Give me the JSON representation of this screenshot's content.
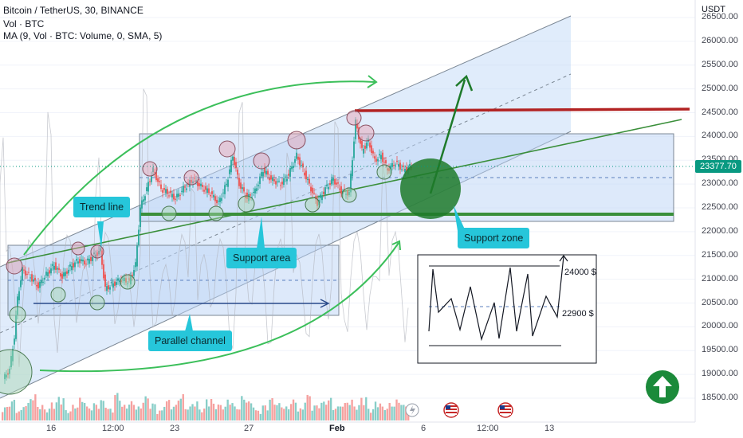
{
  "header": {
    "symbol_line": "Bitcoin / TetherUS, 30, BINANCE",
    "vol_line": "Vol · BTC",
    "ma_line": "MA (9, Vol · BTC: Volume, 0, SMA, 5)"
  },
  "currency": "USDT",
  "current_price": "23377.70",
  "callouts": {
    "trend_line": "Trend line",
    "support_area": "Support area",
    "support_zone": "Support zone",
    "parallel_channel": "Parallel channel"
  },
  "inset": {
    "top_label": "24000 $",
    "mid_label": "22900 $"
  },
  "colors": {
    "up_candle": "#26a69a",
    "down_candle": "#ef5350",
    "channel_fill": "#bbd4f6",
    "support_line": "#3a8f3a",
    "resistance_line": "#b22222",
    "arrow_green": "#2e8b3a",
    "callout_bg": "#26c6da"
  },
  "icons": [
    "up-arrow-circle-icon",
    "flag-usa-icon",
    "lightning-icon"
  ],
  "chart_data": {
    "type": "candlestick",
    "title": "Bitcoin / TetherUS, 30, BINANCE",
    "ylim": [
      18000,
      26700
    ],
    "y_ticks": [
      "26500.00",
      "26000.00",
      "25500.00",
      "25000.00",
      "24500.00",
      "24000.00",
      "23500.00",
      "23000.00",
      "22500.00",
      "22000.00",
      "21500.00",
      "21000.00",
      "20500.00",
      "20000.00",
      "19500.00",
      "19000.00",
      "18500.00"
    ],
    "x_ticks": [
      "16",
      "12:00",
      "23",
      "27",
      "Feb",
      "6",
      "12:00",
      "13"
    ],
    "x_ticks_bold": [
      "Feb"
    ],
    "price_path": [
      {
        "x": 0,
        "y": 18900
      },
      {
        "x": 8,
        "y": 19100
      },
      {
        "x": 14,
        "y": 19800
      },
      {
        "x": 18,
        "y": 20600
      },
      {
        "x": 24,
        "y": 21200
      },
      {
        "x": 34,
        "y": 21050
      },
      {
        "x": 44,
        "y": 20850
      },
      {
        "x": 54,
        "y": 21100
      },
      {
        "x": 64,
        "y": 21300
      },
      {
        "x": 74,
        "y": 21050
      },
      {
        "x": 84,
        "y": 21250
      },
      {
        "x": 94,
        "y": 21400
      },
      {
        "x": 104,
        "y": 21350
      },
      {
        "x": 114,
        "y": 21500
      },
      {
        "x": 122,
        "y": 21600
      },
      {
        "x": 128,
        "y": 20800
      },
      {
        "x": 138,
        "y": 20900
      },
      {
        "x": 148,
        "y": 21000
      },
      {
        "x": 158,
        "y": 20950
      },
      {
        "x": 166,
        "y": 21300
      },
      {
        "x": 172,
        "y": 22500
      },
      {
        "x": 180,
        "y": 22900
      },
      {
        "x": 188,
        "y": 23300
      },
      {
        "x": 198,
        "y": 22900
      },
      {
        "x": 208,
        "y": 22800
      },
      {
        "x": 216,
        "y": 22700
      },
      {
        "x": 226,
        "y": 22900
      },
      {
        "x": 238,
        "y": 23100
      },
      {
        "x": 248,
        "y": 22950
      },
      {
        "x": 260,
        "y": 22800
      },
      {
        "x": 270,
        "y": 22600
      },
      {
        "x": 280,
        "y": 23000
      },
      {
        "x": 288,
        "y": 23600
      },
      {
        "x": 296,
        "y": 23000
      },
      {
        "x": 306,
        "y": 22700
      },
      {
        "x": 316,
        "y": 22850
      },
      {
        "x": 326,
        "y": 23300
      },
      {
        "x": 336,
        "y": 23100
      },
      {
        "x": 348,
        "y": 23000
      },
      {
        "x": 358,
        "y": 23200
      },
      {
        "x": 368,
        "y": 23600
      },
      {
        "x": 376,
        "y": 23300
      },
      {
        "x": 386,
        "y": 22900
      },
      {
        "x": 394,
        "y": 22600
      },
      {
        "x": 404,
        "y": 22900
      },
      {
        "x": 414,
        "y": 23100
      },
      {
        "x": 424,
        "y": 22850
      },
      {
        "x": 434,
        "y": 22800
      },
      {
        "x": 442,
        "y": 24300
      },
      {
        "x": 450,
        "y": 23700
      },
      {
        "x": 458,
        "y": 23900
      },
      {
        "x": 466,
        "y": 23500
      },
      {
        "x": 474,
        "y": 23600
      },
      {
        "x": 482,
        "y": 23300
      },
      {
        "x": 492,
        "y": 23450
      },
      {
        "x": 502,
        "y": 23300
      },
      {
        "x": 512,
        "y": 23380
      }
    ],
    "volume_bars": [
      8,
      12,
      6,
      10,
      15,
      9,
      7,
      11,
      14,
      6,
      9,
      13,
      8,
      10,
      12,
      7,
      16,
      9,
      11,
      8,
      14,
      10,
      6,
      12,
      9,
      15,
      8,
      11,
      7,
      13,
      10,
      9,
      12,
      8,
      14,
      11,
      6,
      9,
      13,
      10,
      8,
      12,
      7,
      15,
      9,
      11,
      13,
      8,
      10,
      12,
      9,
      14,
      7,
      11,
      8,
      10,
      12,
      9
    ]
  }
}
